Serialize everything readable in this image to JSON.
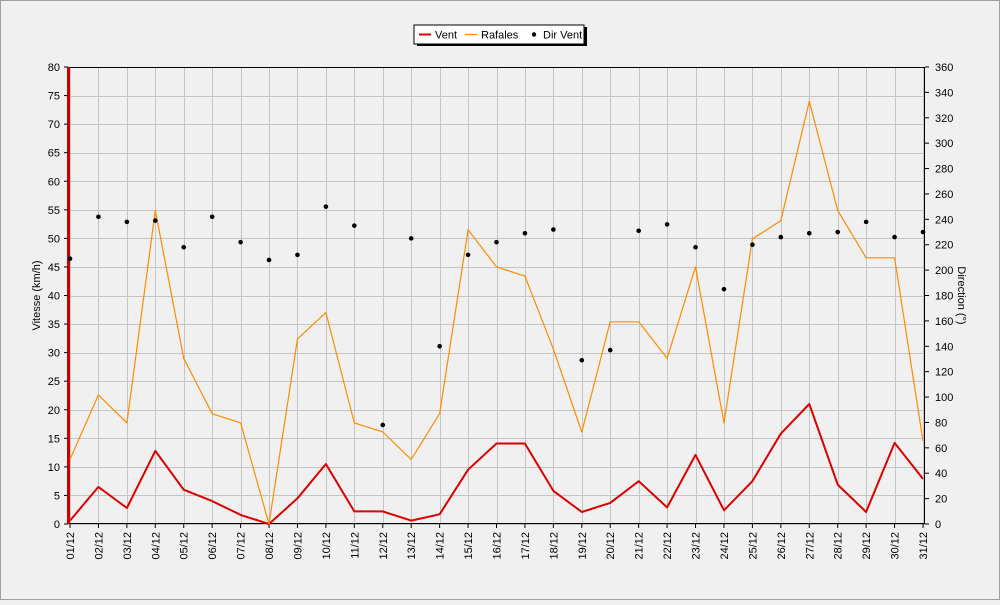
{
  "chart_data": {
    "type": "line",
    "legend": {
      "placement": "top-center",
      "entries": [
        {
          "label": "Vent",
          "color": "#dd0000"
        },
        {
          "label": "Rafales",
          "color": "#ff8c00"
        },
        {
          "label": "Dir Vent",
          "color": "#000000"
        }
      ]
    },
    "ylabel_left": "Vitesse (km/h)",
    "ylabel_right": "Direction (°)",
    "ylim_left": [
      0,
      80
    ],
    "ylim_right": [
      0,
      360
    ],
    "yticks_left": [
      "0",
      "5",
      "10",
      "15",
      "20",
      "25",
      "30",
      "35",
      "40",
      "45",
      "50",
      "55",
      "60",
      "65",
      "70",
      "75",
      "80"
    ],
    "yticks_right": [
      "0",
      "20",
      "40",
      "60",
      "80",
      "100",
      "120",
      "140",
      "160",
      "180",
      "200",
      "220",
      "240",
      "260",
      "280",
      "300",
      "320",
      "340",
      "360"
    ],
    "grid": true,
    "categories": [
      "01/12",
      "02/12",
      "03/12",
      "04/12",
      "05/12",
      "06/12",
      "07/12",
      "08/12",
      "09/12",
      "10/12",
      "11/12",
      "12/12",
      "13/12",
      "14/12",
      "15/12",
      "16/12",
      "17/12",
      "18/12",
      "19/12",
      "20/12",
      "21/12",
      "22/12",
      "23/12",
      "24/12",
      "25/12",
      "26/12",
      "27/12",
      "28/12",
      "29/12",
      "30/12",
      "31/12"
    ],
    "series": [
      {
        "name": "Vent",
        "axis": "left",
        "color": "#dd0000",
        "values": [
          0.6,
          6.5,
          2.8,
          12.8,
          6.0,
          4.0,
          1.6,
          0.0,
          4.5,
          10.5,
          2.2,
          2.2,
          0.6,
          1.7,
          9.5,
          14.1,
          14.1,
          5.8,
          2.1,
          3.7,
          7.5,
          2.9,
          12.1,
          2.4,
          7.5,
          15.8,
          21.0,
          6.9,
          2.1,
          14.2,
          7.9
        ]
      },
      {
        "name": "Rafales",
        "axis": "left",
        "color": "#ff8c00",
        "values": [
          11.3,
          22.6,
          17.7,
          54.9,
          29.0,
          19.3,
          17.7,
          0.0,
          32.4,
          37.0,
          17.7,
          16.1,
          11.3,
          19.3,
          51.5,
          45.0,
          43.4,
          30.6,
          16.1,
          35.4,
          35.4,
          29.0,
          45.0,
          17.7,
          49.9,
          53.1,
          74.0,
          54.9,
          46.6,
          46.6,
          14.5
        ]
      },
      {
        "name": "Dir Vent",
        "axis": "right",
        "color": "#000000",
        "style": "points",
        "values": [
          209,
          242,
          238,
          239,
          218,
          242,
          222,
          208,
          212,
          250,
          235,
          78,
          225,
          140,
          212,
          222,
          229,
          232,
          129,
          137,
          231,
          236,
          218,
          185,
          220,
          226,
          229,
          230,
          238,
          226,
          230
        ]
      }
    ]
  }
}
